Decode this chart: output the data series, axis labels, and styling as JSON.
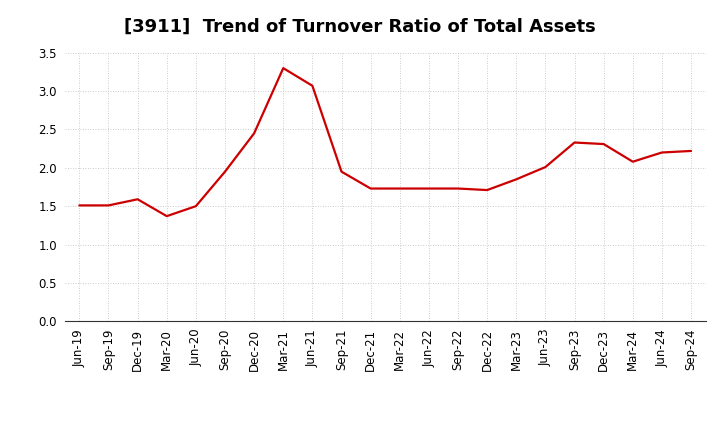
{
  "title": "[3911]  Trend of Turnover Ratio of Total Assets",
  "x_labels": [
    "Jun-19",
    "Sep-19",
    "Dec-19",
    "Mar-20",
    "Jun-20",
    "Sep-20",
    "Dec-20",
    "Mar-21",
    "Jun-21",
    "Sep-21",
    "Dec-21",
    "Mar-22",
    "Jun-22",
    "Sep-22",
    "Dec-22",
    "Mar-23",
    "Jun-23",
    "Sep-23",
    "Dec-23",
    "Mar-24",
    "Jun-24",
    "Sep-24"
  ],
  "y_values": [
    1.51,
    1.51,
    1.59,
    1.37,
    1.5,
    1.95,
    2.45,
    3.3,
    3.07,
    1.95,
    1.73,
    1.73,
    1.73,
    1.73,
    1.71,
    1.85,
    2.01,
    2.33,
    2.31,
    2.08,
    2.2,
    2.22
  ],
  "line_color": "#cc0000",
  "background_color": "#ffffff",
  "plot_bg_color": "#ffffff",
  "ylim": [
    0.0,
    3.5
  ],
  "yticks": [
    0.0,
    0.5,
    1.0,
    1.5,
    2.0,
    2.5,
    3.0,
    3.5
  ],
  "grid_color": "#bbbbbb",
  "title_fontsize": 13,
  "tick_fontsize": 8.5,
  "line_width": 1.6
}
